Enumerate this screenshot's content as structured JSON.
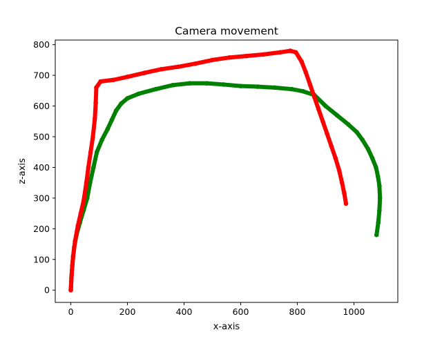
{
  "chart_data": {
    "type": "scatter",
    "title": "Camera movement",
    "xlabel": "x-axis",
    "ylabel": "z-axis",
    "xlim": [
      -55,
      1155
    ],
    "ylim": [
      -40,
      815
    ],
    "xticks": [
      0,
      200,
      400,
      600,
      800,
      1000
    ],
    "yticks": [
      0,
      100,
      200,
      300,
      400,
      500,
      600,
      700,
      800
    ],
    "grid": false,
    "legend": "none",
    "series": [
      {
        "color": "#008000",
        "points": [
          [
            0,
            0
          ],
          [
            2,
            40
          ],
          [
            5,
            80
          ],
          [
            12,
            140
          ],
          [
            20,
            180
          ],
          [
            32,
            220
          ],
          [
            45,
            260
          ],
          [
            58,
            300
          ],
          [
            68,
            350
          ],
          [
            80,
            400
          ],
          [
            92,
            450
          ],
          [
            110,
            490
          ],
          [
            130,
            525
          ],
          [
            145,
            555
          ],
          [
            160,
            585
          ],
          [
            178,
            608
          ],
          [
            200,
            625
          ],
          [
            240,
            640
          ],
          [
            300,
            655
          ],
          [
            360,
            668
          ],
          [
            420,
            674
          ],
          [
            480,
            674
          ],
          [
            540,
            670
          ],
          [
            600,
            665
          ],
          [
            660,
            663
          ],
          [
            720,
            660
          ],
          [
            780,
            655
          ],
          [
            820,
            648
          ],
          [
            860,
            636
          ],
          [
            900,
            600
          ],
          [
            940,
            570
          ],
          [
            980,
            540
          ],
          [
            1010,
            515
          ],
          [
            1030,
            490
          ],
          [
            1050,
            460
          ],
          [
            1065,
            430
          ],
          [
            1078,
            400
          ],
          [
            1085,
            370
          ],
          [
            1090,
            340
          ],
          [
            1092,
            300
          ],
          [
            1090,
            260
          ],
          [
            1086,
            220
          ],
          [
            1080,
            180
          ]
        ]
      },
      {
        "color": "#ff0000",
        "points": [
          [
            0,
            0
          ],
          [
            3,
            50
          ],
          [
            8,
            110
          ],
          [
            15,
            160
          ],
          [
            25,
            210
          ],
          [
            35,
            250
          ],
          [
            45,
            290
          ],
          [
            55,
            350
          ],
          [
            62,
            400
          ],
          [
            70,
            450
          ],
          [
            78,
            500
          ],
          [
            85,
            560
          ],
          [
            88,
            610
          ],
          [
            90,
            660
          ],
          [
            105,
            680
          ],
          [
            150,
            685
          ],
          [
            200,
            695
          ],
          [
            260,
            708
          ],
          [
            320,
            720
          ],
          [
            380,
            728
          ],
          [
            440,
            738
          ],
          [
            500,
            750
          ],
          [
            560,
            758
          ],
          [
            620,
            763
          ],
          [
            680,
            768
          ],
          [
            740,
            775
          ],
          [
            775,
            780
          ],
          [
            795,
            775
          ],
          [
            815,
            745
          ],
          [
            830,
            710
          ],
          [
            845,
            670
          ],
          [
            860,
            630
          ],
          [
            875,
            590
          ],
          [
            890,
            550
          ],
          [
            905,
            510
          ],
          [
            920,
            470
          ],
          [
            935,
            430
          ],
          [
            948,
            390
          ],
          [
            958,
            350
          ],
          [
            966,
            315
          ],
          [
            972,
            282
          ]
        ]
      }
    ]
  }
}
